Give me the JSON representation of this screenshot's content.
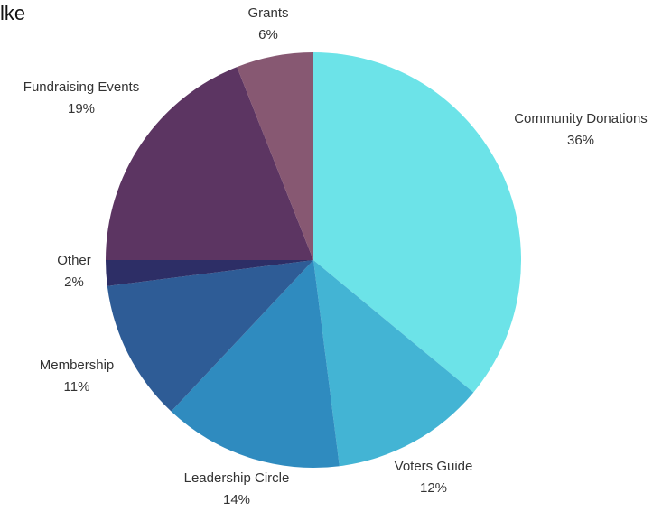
{
  "chart_data": {
    "type": "pie",
    "title": "lke",
    "start_angle_deg": 0,
    "direction": "clockwise",
    "slices": [
      {
        "label": "Community Donations",
        "value": 36,
        "value_label": "36%",
        "color": "#6CE3E8"
      },
      {
        "label": "Voters Guide",
        "value": 12,
        "value_label": "12%",
        "color": "#43B4D4"
      },
      {
        "label": "Leadership Circle",
        "value": 14,
        "value_label": "14%",
        "color": "#2F8BBF"
      },
      {
        "label": "Membership",
        "value": 11,
        "value_label": "11%",
        "color": "#2E5C96"
      },
      {
        "label": "Other",
        "value": 2,
        "value_label": "2%",
        "color": "#2D2E66"
      },
      {
        "label": "Fundraising Events",
        "value": 19,
        "value_label": "19%",
        "color": "#5C3562"
      },
      {
        "label": "Grants",
        "value": 6,
        "value_label": "6%",
        "color": "#875872"
      }
    ]
  }
}
